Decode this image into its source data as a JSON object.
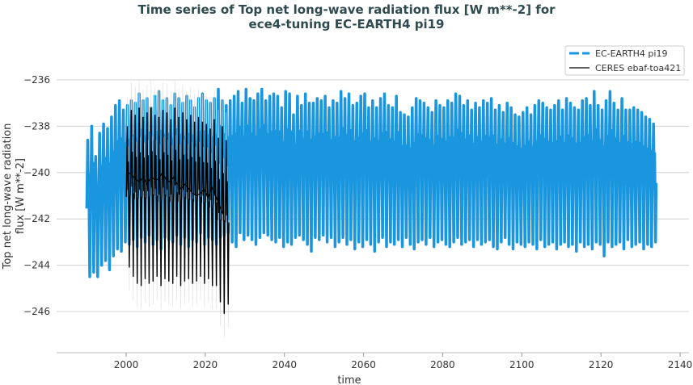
{
  "chart_data": {
    "type": "line",
    "title_line1": "Time series of Top net long-wave radiation flux [W m**-2] for",
    "title_line2": "ece4-tuning EC-EARTH4 pi19",
    "xlabel": "time",
    "ylabel_line1": "Top net long-wave radiation",
    "ylabel_line2": "flux [W m**-2]",
    "xlim": [
      1985,
      2143
    ],
    "ylim": [
      -247.5,
      -234.8
    ],
    "xticks": [
      "2000",
      "2020",
      "2040",
      "2060",
      "2080",
      "2100",
      "2120",
      "2140"
    ],
    "yticks": [
      "−236",
      "−238",
      "−240",
      "−242",
      "−244",
      "−246"
    ],
    "ytick_values": [
      -236,
      -238,
      -240,
      -242,
      -244,
      -246
    ],
    "xtick_values": [
      2000,
      2020,
      2040,
      2060,
      2080,
      2100,
      2120,
      2140
    ],
    "grid": "horizontal",
    "legend_position": "top-right",
    "series": [
      {
        "name": "EC-EARTH4 pi19",
        "color": "#1a96df",
        "style": "dashed",
        "start_year": 1990,
        "annual_max": [
          -238.6,
          -238.0,
          -239.3,
          -238.3,
          -237.9,
          -238.1,
          -237.6,
          -237.1,
          -236.9,
          -237.3,
          -237.1,
          -236.9,
          -237.0,
          -236.6,
          -236.9,
          -236.8,
          -237.2,
          -236.7,
          -236.5,
          -236.9,
          -236.8,
          -237.1,
          -236.6,
          -236.8,
          -237.0,
          -236.7,
          -236.9,
          -237.2,
          -236.8,
          -236.6,
          -236.9,
          -237.0,
          -236.8,
          -236.4,
          -236.9,
          -237.1,
          -236.9,
          -236.7,
          -236.5,
          -237.0,
          -236.4,
          -236.8,
          -236.9,
          -236.6,
          -236.4,
          -236.9,
          -236.7,
          -236.6,
          -236.7,
          -237.2,
          -236.5,
          -236.6,
          -237.5,
          -236.7,
          -237.1,
          -236.6,
          -237.0,
          -237.0,
          -236.8,
          -236.9,
          -236.7,
          -237.2,
          -236.9,
          -237.0,
          -236.5,
          -236.8,
          -236.6,
          -237.1,
          -237.0,
          -236.7,
          -236.6,
          -237.2,
          -236.9,
          -237.2,
          -236.8,
          -236.6,
          -237.1,
          -237.2,
          -236.7,
          -237.4,
          -237.5,
          -237.6,
          -237.2,
          -236.8,
          -236.9,
          -237.0,
          -237.2,
          -237.4,
          -236.9,
          -237.1,
          -237.2,
          -236.9,
          -237.0,
          -236.6,
          -236.7,
          -237.1,
          -236.9,
          -237.3,
          -237.0,
          -237.2,
          -236.9,
          -237.0,
          -236.8,
          -237.3,
          -237.1,
          -237.4,
          -237.0,
          -237.2,
          -237.5,
          -237.6,
          -237.4,
          -237.2,
          -237.5,
          -237.1,
          -236.9,
          -237.0,
          -237.2,
          -237.3,
          -237.1,
          -236.9,
          -237.3,
          -236.8,
          -237.0,
          -237.2,
          -237.3,
          -236.9,
          -236.8,
          -237.1,
          -236.5,
          -237.1,
          -237.3,
          -236.9,
          -236.5,
          -237.0,
          -237.3,
          -236.8,
          -237.3,
          -237.3,
          -237.2,
          -237.3,
          -237.4,
          -237.6,
          -237.7,
          -237.9
        ],
        "annual_min": [
          -244.5,
          -244.3,
          -244.5,
          -244.0,
          -243.8,
          -244.2,
          -243.6,
          -243.3,
          -243.4,
          -243.0,
          -243.1,
          -242.9,
          -243.2,
          -242.8,
          -243.0,
          -242.7,
          -243.1,
          -242.9,
          -243.3,
          -242.8,
          -242.9,
          -243.0,
          -242.7,
          -243.1,
          -242.8,
          -243.2,
          -242.9,
          -243.0,
          -242.6,
          -243.1,
          -242.8,
          -242.9,
          -243.1,
          -242.8,
          -242.7,
          -242.6,
          -243.0,
          -243.2,
          -242.6,
          -242.9,
          -242.7,
          -242.9,
          -243.1,
          -242.8,
          -242.6,
          -242.7,
          -242.9,
          -243.0,
          -242.8,
          -243.2,
          -243.0,
          -243.1,
          -242.8,
          -242.7,
          -242.9,
          -243.1,
          -243.4,
          -242.8,
          -242.9,
          -242.7,
          -243.0,
          -242.8,
          -243.2,
          -243.0,
          -242.8,
          -243.1,
          -242.9,
          -243.3,
          -243.0,
          -243.2,
          -242.9,
          -243.1,
          -243.4,
          -243.0,
          -242.8,
          -243.2,
          -243.0,
          -243.1,
          -242.9,
          -243.2,
          -242.8,
          -243.1,
          -243.3,
          -243.0,
          -242.9,
          -243.1,
          -242.8,
          -243.2,
          -243.0,
          -242.9,
          -243.1,
          -243.2,
          -243.0,
          -242.8,
          -243.1,
          -243.0,
          -242.9,
          -243.2,
          -242.9,
          -243.1,
          -243.0,
          -242.9,
          -243.2,
          -243.3,
          -243.0,
          -242.8,
          -243.1,
          -243.3,
          -243.0,
          -243.1,
          -243.2,
          -243.0,
          -243.1,
          -243.3,
          -242.9,
          -243.2,
          -243.1,
          -243.0,
          -243.3,
          -243.1,
          -243.0,
          -243.2,
          -243.1,
          -243.4,
          -243.0,
          -243.2,
          -243.1,
          -243.3,
          -243.0,
          -243.1,
          -243.6,
          -243.0,
          -243.2,
          -243.1,
          -243.0,
          -243.3,
          -242.9,
          -243.2,
          -243.1,
          -243.0,
          -243.3,
          -243.1,
          -243.2,
          -243.0
        ]
      },
      {
        "name": "CERES ebaf-toa421",
        "color": "#000000",
        "style": "solid",
        "start_year": 2000,
        "annual_max": [
          -238.0,
          -237.3,
          -237.5,
          -237.2,
          -237.6,
          -237.4,
          -237.2,
          -237.5,
          -237.6,
          -237.3,
          -237.4,
          -237.7,
          -237.2,
          -237.6,
          -237.4,
          -237.7,
          -237.5,
          -237.8,
          -237.6,
          -237.8,
          -237.9,
          -238.1,
          -237.7,
          -238.5,
          -238.0,
          -238.6
        ],
        "annual_min": [
          -244.1,
          -244.5,
          -244.8,
          -244.9,
          -244.6,
          -244.8,
          -244.7,
          -244.5,
          -244.9,
          -244.6,
          -244.7,
          -244.8,
          -244.5,
          -244.9,
          -244.7,
          -244.6,
          -244.8,
          -244.7,
          -244.5,
          -244.8,
          -244.6,
          -244.9,
          -244.9,
          -245.6,
          -246.1,
          -245.7
        ],
        "annual_mean": [
          -240.0,
          -240.1,
          -240.3,
          -240.4,
          -240.2,
          -240.5,
          -240.2,
          -240.3,
          -240.3,
          -240.0,
          -240.3,
          -240.4,
          -240.2,
          -240.5,
          -240.7,
          -240.5,
          -240.7,
          -240.9,
          -241.0,
          -240.9,
          -240.7,
          -241.1,
          -240.6,
          -241.0,
          -241.4,
          -241.8
        ]
      }
    ]
  }
}
